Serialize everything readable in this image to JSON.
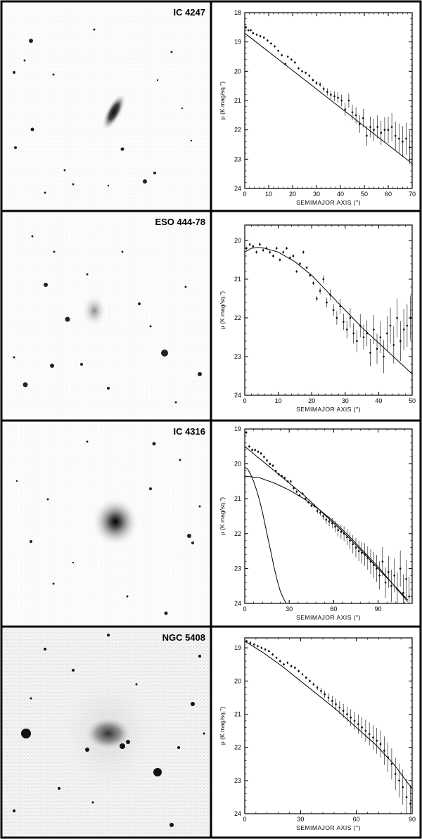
{
  "panels": [
    {
      "label": "IC 4247"
    },
    {
      "label": "ESO 444-78"
    },
    {
      "label": "IC 4316"
    },
    {
      "label": "NGC 5408"
    }
  ],
  "chart_data": [
    {
      "type": "scatter",
      "title": "IC 4247",
      "xlabel": "SEMIMAJOR AXIS (\")",
      "ylabel": "μ (K mag/sq.\")",
      "xlim": [
        0,
        70
      ],
      "ylim": [
        24,
        18
      ],
      "xticks": [
        0,
        10,
        20,
        30,
        40,
        50,
        60,
        70
      ],
      "yticks": [
        18,
        19,
        20,
        21,
        22,
        23,
        24
      ],
      "x": [
        0.5,
        1.5,
        2.5,
        3.5,
        5,
        6.5,
        8,
        9.5,
        11,
        12.5,
        14,
        15.5,
        17,
        18,
        19.5,
        21,
        22.5,
        24,
        25.5,
        27,
        28.5,
        30,
        31.5,
        33,
        34.5,
        36,
        37.5,
        39,
        40.5,
        42,
        43.5,
        45,
        46.5,
        48,
        49.5,
        51,
        52.5,
        54,
        55.5,
        57,
        58.5,
        60,
        61.5,
        63,
        64.5,
        66,
        67.5,
        69
      ],
      "y": [
        18.5,
        18.6,
        18.6,
        18.7,
        18.75,
        18.8,
        18.85,
        18.95,
        19.05,
        19.15,
        19.3,
        19.45,
        19.75,
        19.5,
        19.6,
        19.7,
        19.9,
        20.0,
        20.05,
        20.15,
        20.3,
        20.4,
        20.45,
        20.6,
        20.7,
        20.8,
        20.85,
        20.9,
        21.0,
        21.3,
        21.0,
        21.4,
        21.5,
        21.8,
        21.6,
        22.2,
        21.9,
        22.0,
        21.9,
        22.1,
        22.0,
        22.0,
        21.9,
        22.2,
        22.3,
        22.4,
        22.3,
        22.6
      ],
      "fits": [
        {
          "x": [
            0,
            70
          ],
          "y": [
            18.7,
            23.15
          ]
        }
      ]
    },
    {
      "type": "scatter",
      "title": "ESO 444-78",
      "xlabel": "SEMIMAJOR AXIS (\")",
      "ylabel": "μ (K mag/sq.\")",
      "xlim": [
        0,
        50
      ],
      "ylim": [
        24,
        19.6
      ],
      "xticks": [
        0,
        10,
        20,
        30,
        40,
        50
      ],
      "yticks": [
        20,
        21,
        22,
        23,
        24
      ],
      "x": [
        0.5,
        1.5,
        2.5,
        3.5,
        4.5,
        5.5,
        6.5,
        7.5,
        8.5,
        9.5,
        10.5,
        11.5,
        12.5,
        13.5,
        14.5,
        15.5,
        16.5,
        17.5,
        18.5,
        19.5,
        20.5,
        21.5,
        22.5,
        23.5,
        24.5,
        25.5,
        26.5,
        27.5,
        28.5,
        29.5,
        30.5,
        31.5,
        32.5,
        33.5,
        34.5,
        35.5,
        36.5,
        37.5,
        38.5,
        39.5,
        40.5,
        41.5,
        42.5,
        43.5,
        44.5,
        45.5,
        46.5,
        47.5,
        48.5,
        49.5
      ],
      "y": [
        20.2,
        20.1,
        20.15,
        20.3,
        20.1,
        20.25,
        20.2,
        20.3,
        20.4,
        20.2,
        20.5,
        20.3,
        20.2,
        20.45,
        20.4,
        20.8,
        20.6,
        20.3,
        20.7,
        20.9,
        21.1,
        21.5,
        21.3,
        21.0,
        21.6,
        21.4,
        21.8,
        22.0,
        21.7,
        22.1,
        22.3,
        22.0,
        22.4,
        22.6,
        22.2,
        22.5,
        22.4,
        22.9,
        22.3,
        22.8,
        22.5,
        23.0,
        22.4,
        22.2,
        22.7,
        22.0,
        22.6,
        22.3,
        22.2,
        22.0
      ],
      "fits": [
        {
          "x": [
            0,
            2,
            4,
            6,
            8,
            10,
            15,
            20,
            25,
            30,
            35,
            40,
            45,
            50
          ],
          "y": [
            20.3,
            20.2,
            20.18,
            20.2,
            20.25,
            20.3,
            20.55,
            20.9,
            21.35,
            21.8,
            22.25,
            22.65,
            23.05,
            23.45
          ]
        }
      ]
    },
    {
      "type": "scatter",
      "title": "IC 4316",
      "xlabel": "SEMIMAJOR AXIS (\")",
      "ylabel": "μ (K mag/sq.\")",
      "xlim": [
        0,
        113
      ],
      "ylim": [
        24,
        19
      ],
      "xticks": [
        0,
        30,
        60,
        90
      ],
      "yticks": [
        19,
        20,
        21,
        22,
        23,
        24
      ],
      "x": [
        1,
        3,
        5,
        7,
        9,
        11,
        13,
        15,
        17,
        19,
        21,
        23,
        25,
        27,
        29,
        31,
        33,
        35,
        37,
        39,
        41,
        43,
        45,
        47,
        49,
        51,
        53,
        55,
        57,
        59,
        61,
        63,
        65,
        67,
        69,
        71,
        73,
        75,
        77,
        79,
        81,
        83,
        85,
        87,
        89,
        91,
        93,
        95,
        97,
        99,
        101,
        103,
        105,
        107,
        109,
        111
      ],
      "y": [
        19.1,
        19.5,
        19.6,
        19.6,
        19.65,
        19.7,
        19.8,
        19.9,
        20.0,
        20.05,
        20.2,
        20.3,
        20.35,
        20.4,
        20.5,
        20.5,
        20.7,
        20.8,
        20.9,
        20.85,
        21.0,
        21.1,
        21.2,
        21.2,
        21.35,
        21.4,
        21.5,
        21.6,
        21.65,
        21.7,
        21.8,
        21.9,
        21.95,
        22.0,
        22.1,
        22.2,
        22.3,
        22.4,
        22.5,
        22.55,
        22.6,
        22.7,
        22.8,
        22.9,
        23.0,
        23.2,
        22.8,
        23.4,
        23.1,
        23.5,
        23.2,
        23.6,
        23.0,
        23.7,
        23.3,
        23.8
      ],
      "fits": [
        {
          "x": [
            0,
            10,
            20,
            30,
            40,
            50,
            60,
            70,
            80,
            90,
            100,
            110
          ],
          "y": [
            19.5,
            19.85,
            20.2,
            20.55,
            20.9,
            21.3,
            21.7,
            22.1,
            22.55,
            23.0,
            23.45,
            23.9
          ]
        },
        {
          "x": [
            0,
            10,
            20,
            30,
            40,
            50,
            60,
            70,
            80,
            90,
            100,
            110
          ],
          "y": [
            20.35,
            20.4,
            20.55,
            20.75,
            21.0,
            21.3,
            21.65,
            22.05,
            22.5,
            22.95,
            23.45,
            23.95
          ]
        },
        {
          "x": [
            0,
            2,
            4,
            6,
            8,
            10,
            12,
            14,
            16,
            18,
            20,
            22,
            24,
            26,
            28
          ],
          "y": [
            20.1,
            20.15,
            20.3,
            20.5,
            20.75,
            21.05,
            21.4,
            21.8,
            22.2,
            22.6,
            23.0,
            23.35,
            23.65,
            23.85,
            24.0
          ]
        }
      ]
    },
    {
      "type": "scatter",
      "title": "NGC 5408",
      "xlabel": "SEMIMAJOR AXIS (\")",
      "ylabel": "μ (K mag/sq.\")",
      "xlim": [
        0,
        90
      ],
      "ylim": [
        24,
        18.7
      ],
      "xticks": [
        0,
        30,
        60,
        90
      ],
      "yticks": [
        19,
        20,
        21,
        22,
        23,
        24
      ],
      "x": [
        1,
        3,
        5,
        7,
        9,
        11,
        13,
        15,
        17,
        19,
        21,
        23,
        25,
        27,
        29,
        31,
        33,
        35,
        37,
        39,
        41,
        43,
        45,
        47,
        49,
        51,
        53,
        55,
        57,
        59,
        61,
        63,
        65,
        67,
        69,
        71,
        73,
        75,
        77,
        79,
        81,
        83,
        85,
        87,
        89
      ],
      "y": [
        18.8,
        18.85,
        18.9,
        18.95,
        19.0,
        19.05,
        19.1,
        19.2,
        19.3,
        19.4,
        19.5,
        19.45,
        19.55,
        19.6,
        19.7,
        19.8,
        19.9,
        20.0,
        20.1,
        20.2,
        20.3,
        20.4,
        20.5,
        20.6,
        20.7,
        20.8,
        20.9,
        21.0,
        21.1,
        21.2,
        21.3,
        21.4,
        21.5,
        21.6,
        21.7,
        21.8,
        21.9,
        22.1,
        22.3,
        22.5,
        22.8,
        23.0,
        23.2,
        23.5,
        23.7
      ],
      "fits": [
        {
          "x": [
            0,
            10,
            20,
            30,
            40,
            50,
            60,
            70,
            80,
            90
          ],
          "y": [
            18.8,
            19.15,
            19.55,
            20.0,
            20.45,
            20.9,
            21.4,
            21.9,
            22.5,
            23.25
          ]
        }
      ]
    }
  ]
}
